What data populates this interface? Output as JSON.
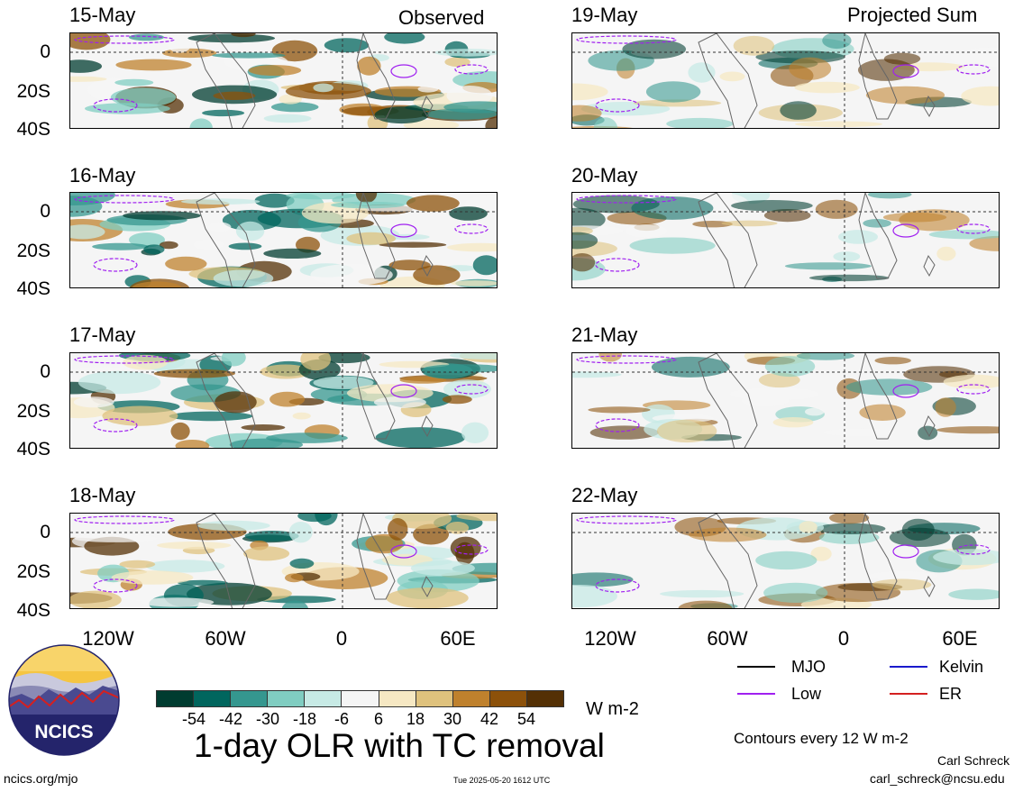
{
  "columns": {
    "observed_title": "Observed",
    "projected_title": "Projected Sum"
  },
  "observed_dates": [
    "15-May",
    "16-May",
    "17-May",
    "18-May"
  ],
  "projected_dates": [
    "19-May",
    "20-May",
    "21-May",
    "22-May"
  ],
  "y_axis_labels": [
    "0",
    "20S",
    "40S"
  ],
  "x_axis_labels": [
    "120W",
    "60W",
    "0",
    "60E"
  ],
  "legend": {
    "mjo": "MJO",
    "kelvin": "Kelvin",
    "low": "Low",
    "er": "ER",
    "colors": {
      "mjo": "#000000",
      "kelvin": "#1a1acc",
      "low": "#a020f0",
      "er": "#d42020"
    }
  },
  "colorbar": {
    "ticks": [
      "-54",
      "-42",
      "-30",
      "-18",
      "-6",
      "6",
      "18",
      "30",
      "42",
      "54"
    ],
    "colors": [
      "#003c30",
      "#01665e",
      "#35978f",
      "#80cdc1",
      "#c7eae5",
      "#f5f5f5",
      "#f6e8c3",
      "#dfc27d",
      "#bf812d",
      "#8c510a",
      "#543005"
    ],
    "units": "W m-2"
  },
  "title": "1-day OLR with TC removal",
  "contour_note": "Contours every 12 W m-2",
  "logo_text": "NCICS",
  "footer": {
    "url": "ncics.org/mjo",
    "timestamp": "Tue 2025-05-20 1612 UTC",
    "author": "Carl Schreck",
    "email": "carl_schreck@ncsu.edu"
  }
}
